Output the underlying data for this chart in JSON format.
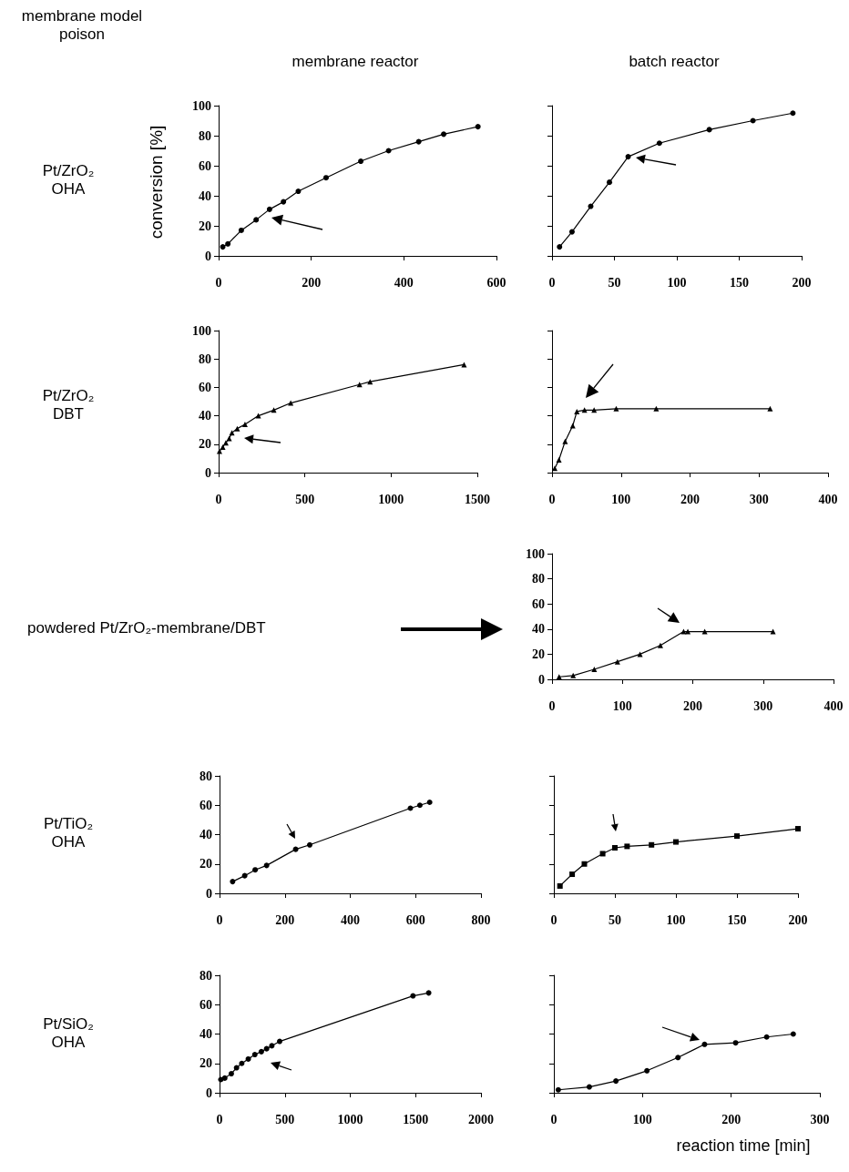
{
  "chart_data": [
    {
      "type": "line",
      "title": "membrane reactor",
      "ylabel": "conversion [%]",
      "annotations": [
        "membrane model poison",
        "Pt/ZrO₂ OHA"
      ],
      "x": [
        9,
        20,
        49,
        81,
        110,
        140,
        172,
        232,
        307,
        367,
        432,
        486,
        560
      ],
      "values": [
        6,
        8,
        17,
        24,
        31,
        36,
        43,
        52,
        63,
        70,
        76,
        81,
        86
      ],
      "color": "#000000",
      "marker": "circle",
      "xlim": [
        0,
        600
      ],
      "xticks": [
        0,
        200,
        400,
        600
      ],
      "ylim": [
        0,
        100
      ],
      "yticks": [
        0,
        20,
        40,
        60,
        80,
        100
      ]
    },
    {
      "type": "line",
      "title": "batch reactor",
      "x": [
        6,
        16,
        31,
        46,
        61,
        86,
        126,
        161,
        193
      ],
      "values": [
        6,
        16,
        33,
        49,
        66,
        75,
        84,
        90,
        95
      ],
      "color": "#000000",
      "marker": "circle",
      "xlim": [
        0,
        200
      ],
      "xticks": [
        0,
        50,
        100,
        150,
        200
      ],
      "ylim": [
        0,
        100
      ],
      "yticks": [
        0,
        20,
        40,
        60,
        80,
        100
      ],
      "tick_labels": "x"
    },
    {
      "type": "line",
      "annotations": [
        "Pt/ZrO₂ DBT"
      ],
      "x": [
        5,
        24,
        42,
        61,
        77,
        108,
        153,
        230,
        320,
        418,
        817,
        878,
        1423
      ],
      "values": [
        15,
        18,
        21,
        24,
        28,
        31,
        34,
        40,
        44,
        49,
        62,
        64,
        76
      ],
      "color": "#000000",
      "marker": "triangle",
      "xlim": [
        0,
        1500
      ],
      "xticks": [
        0,
        500,
        1000,
        1500
      ],
      "ylim": [
        0,
        100
      ],
      "yticks": [
        0,
        20,
        40,
        60,
        80,
        100
      ]
    },
    {
      "type": "line",
      "x": [
        4,
        10,
        19,
        30,
        36,
        47,
        61,
        93,
        151,
        316
      ],
      "values": [
        3,
        9,
        22,
        33,
        43,
        44,
        44,
        45,
        45,
        45
      ],
      "color": "#000000",
      "marker": "triangle",
      "xlim": [
        0,
        400
      ],
      "xticks": [
        0,
        100,
        200,
        300,
        400
      ],
      "ylim": [
        0,
        100
      ],
      "yticks": [
        0,
        20,
        40,
        60,
        80,
        100
      ],
      "tick_labels": "x"
    },
    {
      "type": "line",
      "annotations": [
        "powdered Pt/ZrO₂-membrane/DBT"
      ],
      "x": [
        10,
        30,
        60,
        93,
        125,
        154,
        187,
        193,
        217,
        314
      ],
      "values": [
        2,
        3,
        8,
        14,
        20,
        27,
        38,
        38,
        38,
        38
      ],
      "color": "#000000",
      "marker": "triangle",
      "xlim": [
        0,
        400
      ],
      "xticks": [
        0,
        100,
        200,
        300,
        400
      ],
      "ylim": [
        0,
        100
      ],
      "yticks": [
        0,
        20,
        40,
        60,
        80,
        100
      ]
    },
    {
      "type": "line",
      "annotations": [
        "Pt/TiO₂ OHA"
      ],
      "x": [
        40,
        77,
        109,
        144,
        233,
        276,
        584,
        613,
        643
      ],
      "values": [
        8,
        12,
        16,
        19,
        30,
        33,
        58,
        60,
        62
      ],
      "color": "#000000",
      "marker": "circle",
      "xlim": [
        0,
        800
      ],
      "xticks": [
        0,
        200,
        400,
        600,
        800
      ],
      "ylim": [
        0,
        80
      ],
      "yticks": [
        0,
        20,
        40,
        60,
        80
      ]
    },
    {
      "type": "line",
      "x": [
        5,
        15,
        25,
        40,
        50,
        60,
        80,
        100,
        150,
        200
      ],
      "values": [
        5,
        13,
        20,
        27,
        31,
        32,
        33,
        35,
        39,
        44
      ],
      "color": "#000000",
      "marker": "square",
      "xlim": [
        0,
        200
      ],
      "xticks": [
        0,
        50,
        100,
        150,
        200
      ],
      "ylim": [
        0,
        80
      ],
      "yticks": [
        0,
        20,
        40,
        60,
        80
      ],
      "tick_labels": "x"
    },
    {
      "type": "line",
      "annotations": [
        "Pt/SiO₂ OHA"
      ],
      "x": [
        10,
        40,
        90,
        130,
        170,
        220,
        270,
        320,
        360,
        400,
        460,
        1480,
        1600
      ],
      "values": [
        9,
        10,
        13,
        17,
        20,
        23,
        26,
        28,
        30,
        32,
        35,
        66,
        68
      ],
      "color": "#000000",
      "marker": "circle",
      "xlim": [
        0,
        2000
      ],
      "xticks": [
        0,
        500,
        1000,
        1500,
        2000
      ],
      "ylim": [
        0,
        80
      ],
      "yticks": [
        0,
        20,
        40,
        60,
        80
      ]
    },
    {
      "type": "line",
      "xlabel": "reaction time [min]",
      "x": [
        5,
        40,
        70,
        105,
        140,
        170,
        205,
        240,
        270
      ],
      "values": [
        2,
        4,
        8,
        15,
        24,
        33,
        34,
        38,
        40
      ],
      "color": "#000000",
      "marker": "circle",
      "xlim": [
        0,
        300
      ],
      "xticks": [
        0,
        100,
        200,
        300
      ],
      "ylim": [
        0,
        80
      ],
      "yticks": [
        0,
        20,
        40,
        60,
        80
      ],
      "tick_labels": "x"
    }
  ]
}
